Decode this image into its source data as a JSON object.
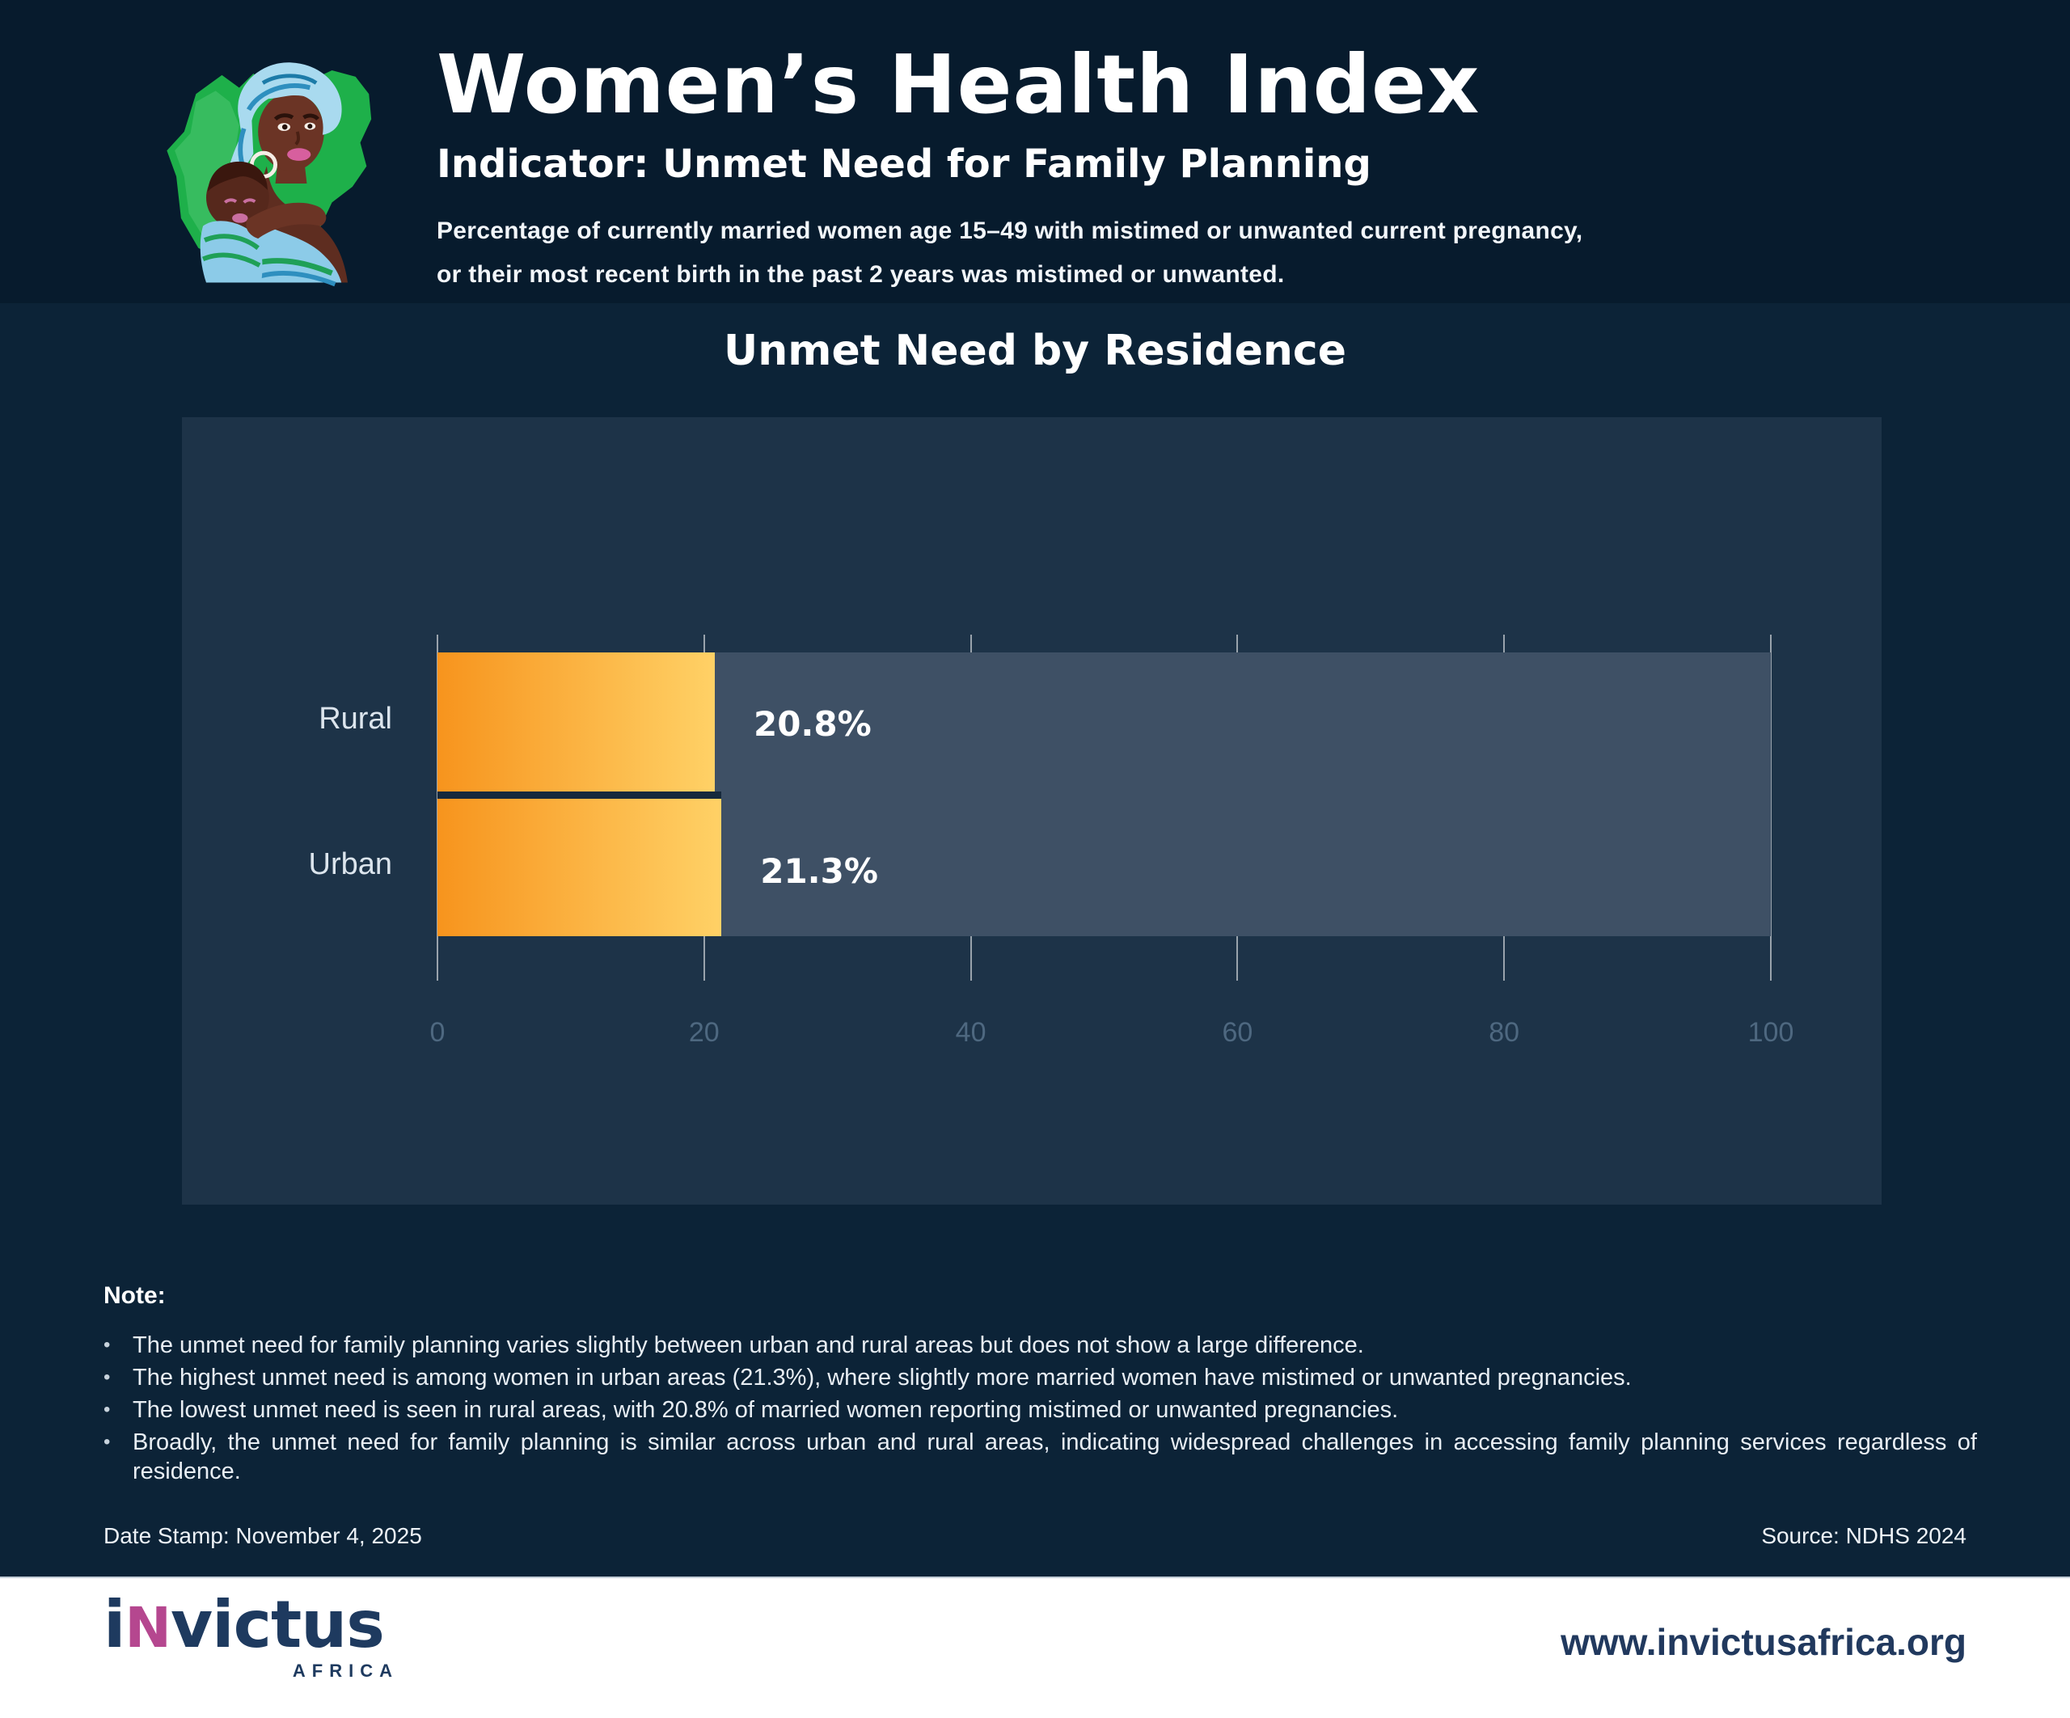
{
  "header": {
    "title": "Women’s Health Index",
    "subtitle": "Indicator: Unmet Need for Family Planning",
    "description_line1": "Percentage of currently married women age 15–49 with mistimed or unwanted current pregnancy,",
    "description_line2": "or their most recent birth in the past 2 years was mistimed or unwanted.",
    "illustration": "nigeria-map-mother-and-child"
  },
  "chart_data": {
    "type": "bar",
    "orientation": "horizontal",
    "title": "Unmet Need by Residence",
    "categories": [
      "Rural",
      "Urban"
    ],
    "values": [
      20.8,
      21.3
    ],
    "value_labels": [
      "20.8%",
      "21.3%"
    ],
    "xlabel": "",
    "ylabel": "",
    "xlim": [
      0,
      100
    ],
    "xticks": [
      0,
      20,
      40,
      60,
      80,
      100
    ],
    "grid": true,
    "legend": false,
    "bar_gradient": [
      "#F7941D",
      "#FFD166"
    ],
    "track_color": "#3E5065",
    "panel_color": "#1D3348"
  },
  "note": {
    "heading": "Note:",
    "bullet_glyph": "•",
    "bullets": [
      "The unmet need for family planning varies slightly between urban and rural areas but does not show a large difference.",
      "The highest unmet need is among women in urban areas (21.3%), where slightly more married women have mistimed or unwanted pregnancies.",
      "The lowest unmet need is seen in rural areas, with 20.8% of married women reporting mistimed or unwanted pregnancies.",
      "Broadly, the unmet need for family planning is similar across urban and rural areas, indicating widespread challenges in accessing family planning services regardless of residence."
    ]
  },
  "meta": {
    "date_stamp": "Date Stamp: November 4, 2025",
    "source": "Source: NDHS 2024"
  },
  "footer": {
    "logo_i": "i",
    "logo_n": "N",
    "logo_rest": "victus",
    "logo_subtext": "AFRICA",
    "website": "www.invictusafrica.org"
  },
  "colors": {
    "header_bg": "#071B2D",
    "body_bg": "#0C2337",
    "panel_bg": "#1D3348",
    "track": "#3E5065",
    "bar_start": "#F7941D",
    "bar_end": "#FFD166",
    "map_green": "#1EB04A",
    "logo_navy": "#1E3A5F",
    "logo_pink": "#B5478F",
    "footer_bg": "#FFFFFF"
  }
}
